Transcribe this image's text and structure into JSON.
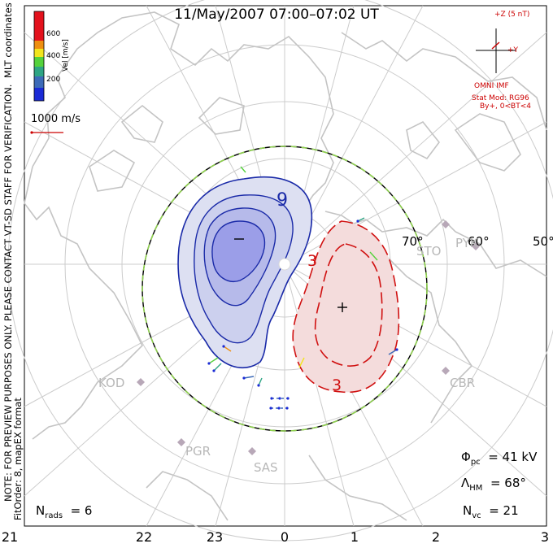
{
  "title": "11/May/2007 07:00–07:02 UT",
  "colorbar": {
    "unit": "Vel [m/s]",
    "ticks": [
      "600",
      "400",
      "200"
    ],
    "colors": [
      "#e3121d",
      "#ee8f10",
      "#f2e51e",
      "#55d23c",
      "#2fa584",
      "#3d6bb8",
      "#1b2bd6"
    ]
  },
  "scale_vector": {
    "label": "1000 m/s"
  },
  "imf": {
    "z_label": "+Z (5 nT)",
    "y_label": "+Y",
    "source": "OMNI IMF"
  },
  "stat_mod": {
    "line1": "Stat Mod: RG96",
    "line2": "By+, 0<BT<4"
  },
  "side_text": {
    "coords": "MLT coordinates",
    "note": "NOTE: FOR PREVIEW PURPOSES ONLY. PLEASE CONTACT VT-SD STAFF FOR VERIFICATION.",
    "fit": "FitOrder: 8, mapEX format"
  },
  "latitudes": [
    "70°",
    "60°",
    "50°"
  ],
  "stations": [
    "STO",
    "PYK",
    "KOD",
    "CBR",
    "PGR",
    "SAS"
  ],
  "contours": {
    "neg_label": "9",
    "pos_label_top": "3",
    "pos_label_bottom": "3",
    "neg_center": "−",
    "pos_center": "+"
  },
  "stats": {
    "phi_value": "41 kV",
    "lambda_value": "68°",
    "nvc_value": "21",
    "nrads_value": "6"
  },
  "mlt_axis": [
    "21",
    "22",
    "23",
    "0",
    "1",
    "2",
    "3"
  ],
  "colors": {
    "land": "#c4c4c4",
    "grid": "#cccccc",
    "neg_fill": "#dde0f2",
    "neg_core": "#9b9ee8",
    "neg_line": "#1a2aa8",
    "pos_fill": "#f4dcdc",
    "pos_line": "#d01010",
    "hmb_dash": "#8fd14f",
    "annot": "#cc0000"
  }
}
